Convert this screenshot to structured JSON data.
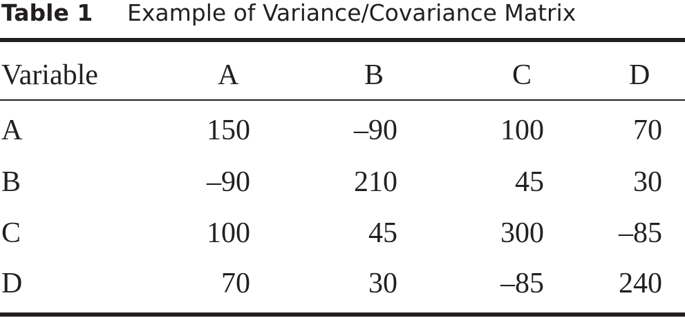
{
  "header": {
    "label": "Table 1",
    "caption": "Example of Variance/Covariance Matrix"
  },
  "table": {
    "columns": [
      "Variable",
      "A",
      "B",
      "C",
      "D"
    ],
    "rows": [
      [
        "A",
        "150",
        "–90",
        "100",
        "70"
      ],
      [
        "B",
        "–90",
        "210",
        "45",
        "30"
      ],
      [
        "C",
        "100",
        "45",
        "300",
        "–85"
      ],
      [
        "D",
        "70",
        "30",
        "–85",
        "240"
      ]
    ]
  }
}
